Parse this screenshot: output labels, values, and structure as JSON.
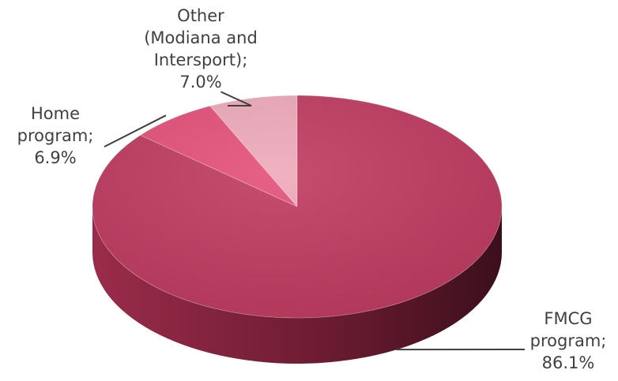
{
  "chart_data": {
    "type": "pie",
    "title": "",
    "slices": [
      {
        "label": "Other\n(Modiana and\nIntersport);\n7.0%",
        "name": "Other (Modiana and Intersport)",
        "value": 7.0,
        "color": "#eea9b9"
      },
      {
        "label": "Home\nprogram;\n6.9%",
        "name": "Home program",
        "value": 6.9,
        "color": "#e4507a"
      },
      {
        "label": "FMCG\nprogram;\n86.1%",
        "name": "FMCG program",
        "value": 86.1,
        "color": "#bf3b60"
      }
    ],
    "style": "3d",
    "labels_show": "category; percentage"
  }
}
